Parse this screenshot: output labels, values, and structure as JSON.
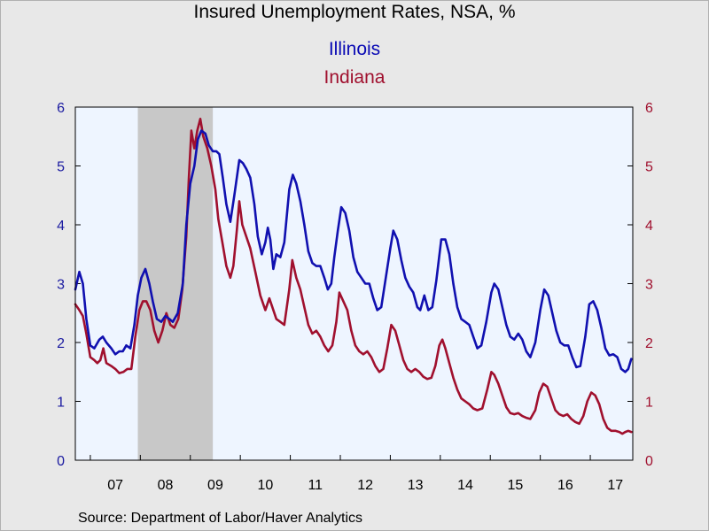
{
  "chart_data": {
    "type": "line",
    "title": "Insured Unemployment Rates, NSA, %",
    "source": "Source:  Department of Labor/Haver Analytics",
    "x_tick_labels": [
      "07",
      "08",
      "09",
      "10",
      "11",
      "12",
      "13",
      "14",
      "15",
      "16",
      "17"
    ],
    "x_range": [
      2006.7,
      2017.85
    ],
    "y_left": {
      "ticks": [
        "0",
        "1",
        "2",
        "3",
        "4",
        "5",
        "6"
      ],
      "ylim": [
        0,
        6
      ],
      "color": "#1a1aa0"
    },
    "y_right": {
      "ticks": [
        "0",
        "1",
        "2",
        "3",
        "4",
        "5",
        "6"
      ],
      "ylim": [
        0,
        6
      ],
      "color": "#a0102e"
    },
    "recession": {
      "start": 2007.95,
      "end": 2009.45,
      "color": "#c8c8c8"
    },
    "plot_background": "#eef5ff",
    "grid": false,
    "legend_placement": "top-center",
    "series": [
      {
        "name": "Illinois",
        "color": "#1010b0",
        "points": [
          [
            2006.7,
            2.9
          ],
          [
            2006.78,
            3.2
          ],
          [
            2006.85,
            3.0
          ],
          [
            2006.92,
            2.4
          ],
          [
            2007.0,
            1.95
          ],
          [
            2007.08,
            1.9
          ],
          [
            2007.18,
            2.05
          ],
          [
            2007.25,
            2.1
          ],
          [
            2007.32,
            2.0
          ],
          [
            2007.42,
            1.9
          ],
          [
            2007.5,
            1.8
          ],
          [
            2007.58,
            1.85
          ],
          [
            2007.65,
            1.85
          ],
          [
            2007.72,
            1.95
          ],
          [
            2007.8,
            1.9
          ],
          [
            2007.88,
            2.3
          ],
          [
            2007.95,
            2.8
          ],
          [
            2008.02,
            3.1
          ],
          [
            2008.1,
            3.25
          ],
          [
            2008.18,
            3.0
          ],
          [
            2008.25,
            2.7
          ],
          [
            2008.33,
            2.4
          ],
          [
            2008.42,
            2.35
          ],
          [
            2008.5,
            2.45
          ],
          [
            2008.58,
            2.4
          ],
          [
            2008.65,
            2.35
          ],
          [
            2008.75,
            2.5
          ],
          [
            2008.85,
            3.0
          ],
          [
            2008.92,
            4.0
          ],
          [
            2009.0,
            4.7
          ],
          [
            2009.08,
            5.0
          ],
          [
            2009.15,
            5.45
          ],
          [
            2009.22,
            5.6
          ],
          [
            2009.3,
            5.55
          ],
          [
            2009.37,
            5.35
          ],
          [
            2009.45,
            5.25
          ],
          [
            2009.52,
            5.25
          ],
          [
            2009.58,
            5.2
          ],
          [
            2009.65,
            4.8
          ],
          [
            2009.72,
            4.35
          ],
          [
            2009.8,
            4.05
          ],
          [
            2009.88,
            4.5
          ],
          [
            2009.98,
            5.1
          ],
          [
            2010.05,
            5.05
          ],
          [
            2010.12,
            4.95
          ],
          [
            2010.2,
            4.8
          ],
          [
            2010.28,
            4.35
          ],
          [
            2010.35,
            3.8
          ],
          [
            2010.43,
            3.5
          ],
          [
            2010.5,
            3.7
          ],
          [
            2010.55,
            3.95
          ],
          [
            2010.6,
            3.75
          ],
          [
            2010.66,
            3.25
          ],
          [
            2010.72,
            3.5
          ],
          [
            2010.8,
            3.45
          ],
          [
            2010.88,
            3.7
          ],
          [
            2010.98,
            4.6
          ],
          [
            2011.05,
            4.85
          ],
          [
            2011.12,
            4.7
          ],
          [
            2011.2,
            4.4
          ],
          [
            2011.28,
            4.0
          ],
          [
            2011.36,
            3.55
          ],
          [
            2011.44,
            3.35
          ],
          [
            2011.52,
            3.3
          ],
          [
            2011.6,
            3.3
          ],
          [
            2011.68,
            3.1
          ],
          [
            2011.75,
            2.9
          ],
          [
            2011.82,
            3.0
          ],
          [
            2011.88,
            3.45
          ],
          [
            2011.95,
            3.9
          ],
          [
            2012.02,
            4.3
          ],
          [
            2012.1,
            4.2
          ],
          [
            2012.18,
            3.9
          ],
          [
            2012.26,
            3.45
          ],
          [
            2012.34,
            3.2
          ],
          [
            2012.42,
            3.1
          ],
          [
            2012.5,
            3.0
          ],
          [
            2012.58,
            3.0
          ],
          [
            2012.66,
            2.75
          ],
          [
            2012.74,
            2.55
          ],
          [
            2012.82,
            2.6
          ],
          [
            2012.9,
            3.05
          ],
          [
            2013.0,
            3.6
          ],
          [
            2013.06,
            3.9
          ],
          [
            2013.14,
            3.75
          ],
          [
            2013.22,
            3.4
          ],
          [
            2013.3,
            3.1
          ],
          [
            2013.38,
            2.95
          ],
          [
            2013.46,
            2.85
          ],
          [
            2013.54,
            2.6
          ],
          [
            2013.6,
            2.55
          ],
          [
            2013.68,
            2.8
          ],
          [
            2013.76,
            2.55
          ],
          [
            2013.84,
            2.6
          ],
          [
            2013.92,
            3.05
          ],
          [
            2014.02,
            3.75
          ],
          [
            2014.1,
            3.75
          ],
          [
            2014.18,
            3.5
          ],
          [
            2014.26,
            3.0
          ],
          [
            2014.34,
            2.6
          ],
          [
            2014.42,
            2.4
          ],
          [
            2014.5,
            2.35
          ],
          [
            2014.58,
            2.3
          ],
          [
            2014.66,
            2.1
          ],
          [
            2014.74,
            1.9
          ],
          [
            2014.82,
            1.95
          ],
          [
            2014.92,
            2.35
          ],
          [
            2015.02,
            2.85
          ],
          [
            2015.08,
            3.0
          ],
          [
            2015.16,
            2.9
          ],
          [
            2015.24,
            2.6
          ],
          [
            2015.32,
            2.3
          ],
          [
            2015.4,
            2.1
          ],
          [
            2015.48,
            2.05
          ],
          [
            2015.56,
            2.15
          ],
          [
            2015.64,
            2.05
          ],
          [
            2015.72,
            1.85
          ],
          [
            2015.8,
            1.75
          ],
          [
            2015.9,
            2.0
          ],
          [
            2016.0,
            2.55
          ],
          [
            2016.08,
            2.9
          ],
          [
            2016.16,
            2.8
          ],
          [
            2016.24,
            2.5
          ],
          [
            2016.32,
            2.2
          ],
          [
            2016.4,
            2.0
          ],
          [
            2016.48,
            1.95
          ],
          [
            2016.56,
            1.95
          ],
          [
            2016.64,
            1.75
          ],
          [
            2016.72,
            1.58
          ],
          [
            2016.8,
            1.6
          ],
          [
            2016.9,
            2.1
          ],
          [
            2016.98,
            2.65
          ],
          [
            2017.06,
            2.7
          ],
          [
            2017.14,
            2.55
          ],
          [
            2017.22,
            2.25
          ],
          [
            2017.3,
            1.9
          ],
          [
            2017.38,
            1.78
          ],
          [
            2017.46,
            1.8
          ],
          [
            2017.54,
            1.75
          ],
          [
            2017.62,
            1.55
          ],
          [
            2017.7,
            1.5
          ],
          [
            2017.76,
            1.55
          ],
          [
            2017.82,
            1.72
          ]
        ]
      },
      {
        "name": "Indiana",
        "color": "#a0102e",
        "points": [
          [
            2006.7,
            2.65
          ],
          [
            2006.78,
            2.55
          ],
          [
            2006.85,
            2.45
          ],
          [
            2006.92,
            2.15
          ],
          [
            2007.0,
            1.75
          ],
          [
            2007.08,
            1.7
          ],
          [
            2007.14,
            1.65
          ],
          [
            2007.2,
            1.7
          ],
          [
            2007.26,
            1.9
          ],
          [
            2007.32,
            1.65
          ],
          [
            2007.42,
            1.6
          ],
          [
            2007.5,
            1.55
          ],
          [
            2007.58,
            1.48
          ],
          [
            2007.66,
            1.5
          ],
          [
            2007.74,
            1.55
          ],
          [
            2007.82,
            1.55
          ],
          [
            2007.9,
            2.1
          ],
          [
            2007.98,
            2.55
          ],
          [
            2008.05,
            2.7
          ],
          [
            2008.12,
            2.7
          ],
          [
            2008.2,
            2.55
          ],
          [
            2008.28,
            2.2
          ],
          [
            2008.36,
            2.0
          ],
          [
            2008.44,
            2.2
          ],
          [
            2008.52,
            2.5
          ],
          [
            2008.6,
            2.3
          ],
          [
            2008.68,
            2.25
          ],
          [
            2008.76,
            2.4
          ],
          [
            2008.84,
            2.9
          ],
          [
            2008.92,
            3.8
          ],
          [
            2008.97,
            4.8
          ],
          [
            2009.02,
            5.6
          ],
          [
            2009.08,
            5.3
          ],
          [
            2009.14,
            5.6
          ],
          [
            2009.2,
            5.8
          ],
          [
            2009.26,
            5.5
          ],
          [
            2009.34,
            5.3
          ],
          [
            2009.42,
            5.0
          ],
          [
            2009.5,
            4.6
          ],
          [
            2009.56,
            4.1
          ],
          [
            2009.64,
            3.7
          ],
          [
            2009.72,
            3.3
          ],
          [
            2009.8,
            3.1
          ],
          [
            2009.86,
            3.3
          ],
          [
            2009.93,
            3.9
          ],
          [
            2009.98,
            4.4
          ],
          [
            2010.04,
            4.0
          ],
          [
            2010.12,
            3.8
          ],
          [
            2010.2,
            3.6
          ],
          [
            2010.3,
            3.2
          ],
          [
            2010.4,
            2.8
          ],
          [
            2010.5,
            2.55
          ],
          [
            2010.58,
            2.75
          ],
          [
            2010.64,
            2.6
          ],
          [
            2010.72,
            2.4
          ],
          [
            2010.8,
            2.35
          ],
          [
            2010.88,
            2.3
          ],
          [
            2010.98,
            2.9
          ],
          [
            2011.04,
            3.4
          ],
          [
            2011.12,
            3.1
          ],
          [
            2011.2,
            2.9
          ],
          [
            2011.28,
            2.6
          ],
          [
            2011.36,
            2.3
          ],
          [
            2011.44,
            2.15
          ],
          [
            2011.52,
            2.2
          ],
          [
            2011.6,
            2.1
          ],
          [
            2011.68,
            1.95
          ],
          [
            2011.76,
            1.85
          ],
          [
            2011.84,
            1.95
          ],
          [
            2011.92,
            2.35
          ],
          [
            2011.98,
            2.85
          ],
          [
            2012.06,
            2.7
          ],
          [
            2012.14,
            2.55
          ],
          [
            2012.22,
            2.2
          ],
          [
            2012.3,
            1.95
          ],
          [
            2012.38,
            1.85
          ],
          [
            2012.46,
            1.8
          ],
          [
            2012.54,
            1.85
          ],
          [
            2012.62,
            1.75
          ],
          [
            2012.7,
            1.6
          ],
          [
            2012.78,
            1.5
          ],
          [
            2012.86,
            1.55
          ],
          [
            2012.94,
            1.9
          ],
          [
            2013.02,
            2.3
          ],
          [
            2013.1,
            2.2
          ],
          [
            2013.18,
            1.95
          ],
          [
            2013.26,
            1.7
          ],
          [
            2013.34,
            1.55
          ],
          [
            2013.42,
            1.5
          ],
          [
            2013.5,
            1.55
          ],
          [
            2013.58,
            1.5
          ],
          [
            2013.66,
            1.42
          ],
          [
            2013.74,
            1.38
          ],
          [
            2013.82,
            1.4
          ],
          [
            2013.9,
            1.6
          ],
          [
            2013.98,
            1.95
          ],
          [
            2014.04,
            2.05
          ],
          [
            2014.1,
            1.9
          ],
          [
            2014.18,
            1.65
          ],
          [
            2014.26,
            1.4
          ],
          [
            2014.34,
            1.2
          ],
          [
            2014.42,
            1.05
          ],
          [
            2014.5,
            1.0
          ],
          [
            2014.58,
            0.95
          ],
          [
            2014.66,
            0.88
          ],
          [
            2014.74,
            0.85
          ],
          [
            2014.84,
            0.88
          ],
          [
            2014.94,
            1.2
          ],
          [
            2015.02,
            1.5
          ],
          [
            2015.08,
            1.45
          ],
          [
            2015.16,
            1.3
          ],
          [
            2015.24,
            1.1
          ],
          [
            2015.32,
            0.9
          ],
          [
            2015.4,
            0.8
          ],
          [
            2015.48,
            0.78
          ],
          [
            2015.56,
            0.8
          ],
          [
            2015.64,
            0.75
          ],
          [
            2015.72,
            0.72
          ],
          [
            2015.8,
            0.7
          ],
          [
            2015.9,
            0.85
          ],
          [
            2015.98,
            1.15
          ],
          [
            2016.06,
            1.3
          ],
          [
            2016.14,
            1.25
          ],
          [
            2016.22,
            1.05
          ],
          [
            2016.3,
            0.85
          ],
          [
            2016.38,
            0.78
          ],
          [
            2016.46,
            0.75
          ],
          [
            2016.54,
            0.78
          ],
          [
            2016.62,
            0.7
          ],
          [
            2016.7,
            0.65
          ],
          [
            2016.78,
            0.62
          ],
          [
            2016.86,
            0.75
          ],
          [
            2016.94,
            1.0
          ],
          [
            2017.02,
            1.15
          ],
          [
            2017.1,
            1.1
          ],
          [
            2017.18,
            0.95
          ],
          [
            2017.26,
            0.7
          ],
          [
            2017.34,
            0.55
          ],
          [
            2017.42,
            0.5
          ],
          [
            2017.5,
            0.5
          ],
          [
            2017.58,
            0.48
          ],
          [
            2017.64,
            0.45
          ],
          [
            2017.7,
            0.48
          ],
          [
            2017.76,
            0.5
          ],
          [
            2017.82,
            0.48
          ]
        ]
      }
    ]
  }
}
